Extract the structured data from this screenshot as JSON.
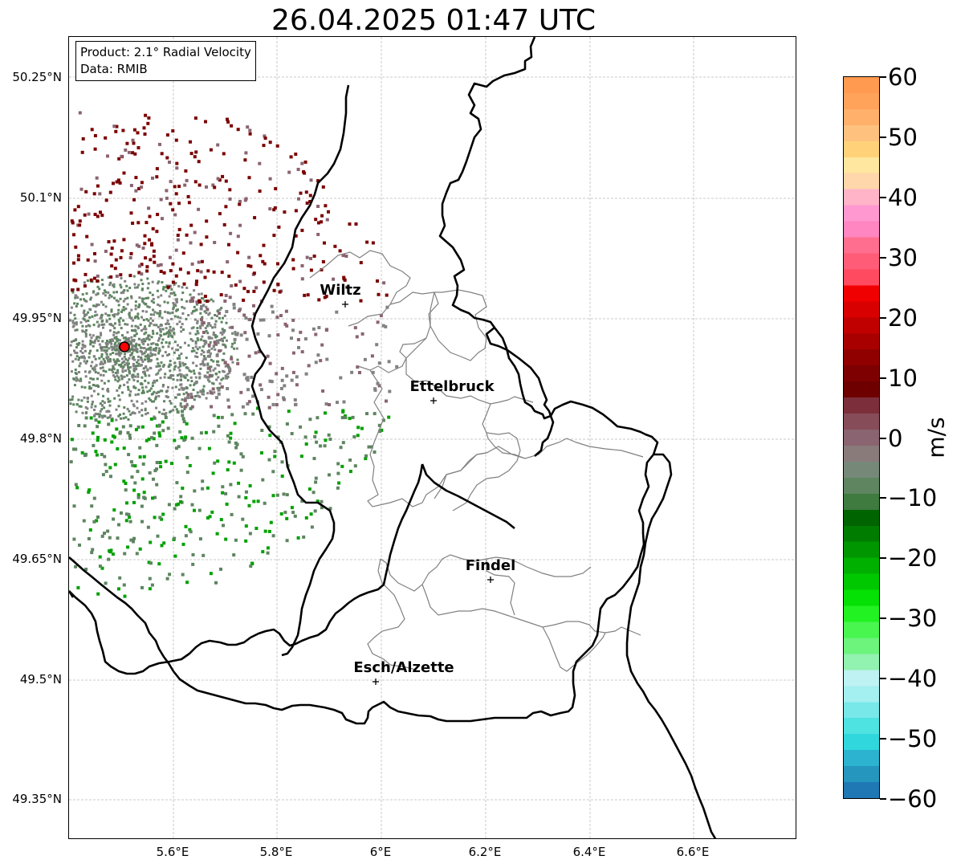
{
  "title": "26.04.2025 01:47 UTC",
  "info_box": {
    "product": "Product: 2.1° Radial Velocity",
    "data": "Data: RMIB"
  },
  "latitude_labels": [
    "50.25°N",
    "50.1°N",
    "49.95°N",
    "49.8°N",
    "49.65°N",
    "49.5°N",
    "49.35°N"
  ],
  "longitude_labels": [
    "5.6°E",
    "5.8°E",
    "6°E",
    "6.2°E",
    "6.4°E",
    "6.6°E"
  ],
  "cities": [
    {
      "name": "Wiltz"
    },
    {
      "name": "Ettelbruck"
    },
    {
      "name": "Findel"
    },
    {
      "name": "Esch/Alzette"
    }
  ],
  "colorbar": {
    "unit": "m/s",
    "tick_labels": [
      "60",
      "50",
      "40",
      "30",
      "20",
      "10",
      "0",
      "−10",
      "−20",
      "−30",
      "−40",
      "−50",
      "−60"
    ],
    "min": -60,
    "max": 60,
    "colors": [
      "#1f77b4",
      "#2596be",
      "#2bb3d0",
      "#30d7dc",
      "#4ee2e0",
      "#78e8e8",
      "#a4efef",
      "#bff2f2",
      "#92f2b0",
      "#6cf47c",
      "#49f54f",
      "#22f122",
      "#05e005",
      "#00c800",
      "#00b000",
      "#009600",
      "#007d00",
      "#006400",
      "#3f7a3f",
      "#5e8560",
      "#768978",
      "#8a7b7b",
      "#8a6470",
      "#864c58",
      "#7c2f3a",
      "#6e0000",
      "#7e0000",
      "#900000",
      "#a80000",
      "#c00000",
      "#d80000",
      "#f00000",
      "#ff4a60",
      "#ff5c78",
      "#ff6e8e",
      "#ff86c0",
      "#ff98d0",
      "#ffb4c8",
      "#ffd7aa",
      "#ffe7a0",
      "#ffd27a",
      "#ffc27e",
      "#ffb06a",
      "#ffa25a",
      "#ff9a50"
    ]
  },
  "radar_site_color": "#ff0000",
  "velocity_colors": {
    "receding_dark": "#7b0000",
    "receding_light": "#8a6470",
    "near_zero": "#828282",
    "approaching": "#5e8560",
    "approaching_strong": "#00a000"
  }
}
